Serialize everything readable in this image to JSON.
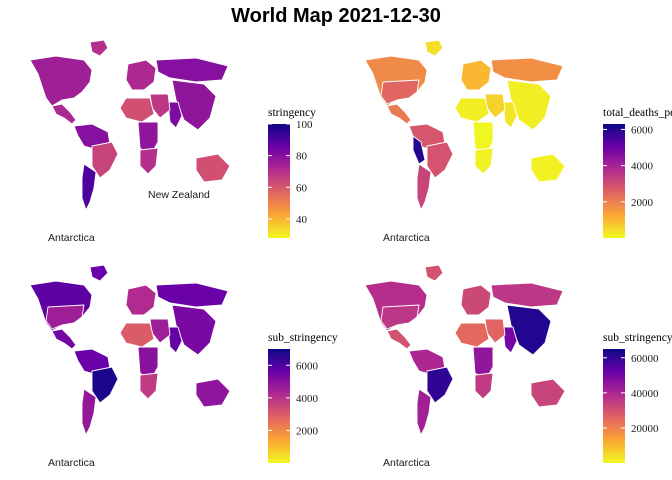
{
  "title": "World Map 2021-12-30",
  "panels": [
    {
      "id": "stringency",
      "legend": {
        "title": "stringency",
        "ticks": [
          100,
          80,
          60,
          40
        ],
        "range": [
          28,
          100
        ]
      },
      "annotations": [
        "New Zealand",
        "Antarctica"
      ],
      "values": {
        "north_america": 75,
        "greenland": 70,
        "central_america": 72,
        "south_america_north": 80,
        "brazil": 65,
        "south_america_south": 90,
        "europe": 72,
        "russia": 80,
        "asia_east": 78,
        "india": 82,
        "africa_north": 62,
        "africa_central": 78,
        "africa_south": 70,
        "middle_east": 68,
        "australia": 62
      }
    },
    {
      "id": "total_deaths_per_million",
      "legend": {
        "title": "total_deaths_per_million",
        "ticks": [
          6000,
          4000,
          2000
        ],
        "range": [
          0,
          6300
        ]
      },
      "annotations": [
        "Antarctica"
      ],
      "values": {
        "north_america": 1800,
        "usa": 2500,
        "greenland": 400,
        "central_america": 2100,
        "south_america_north": 2800,
        "brazil": 2900,
        "peru": 6000,
        "south_america_south": 3200,
        "europe": 1000,
        "russia": 1700,
        "asia_east": 150,
        "india": 300,
        "africa_north": 150,
        "africa_central": 40,
        "africa_south": 100,
        "middle_east": 600,
        "australia": 120
      }
    },
    {
      "id": "sub_stringency",
      "legend": {
        "title": "sub_stringency",
        "ticks": [
          6000,
          4000,
          2000
        ],
        "range": [
          0,
          7000
        ]
      },
      "annotations": [
        "Antarctica"
      ],
      "values": {
        "north_america": 5800,
        "usa": 4600,
        "greenland": 5600,
        "central_america": 5400,
        "south_america_north": 5600,
        "brazil": 6800,
        "south_america_south": 4800,
        "europe": 4200,
        "russia": 5600,
        "asia_east": 5300,
        "india": 5700,
        "africa_north": 3000,
        "africa_central": 5000,
        "africa_south": 3800,
        "middle_east": 4600,
        "australia": 4900
      }
    },
    {
      "id": "sub_stringency_cubed",
      "legend": {
        "title": "sub_stringency_cubed",
        "ticks": [
          60000,
          40000,
          20000
        ],
        "range": [
          0,
          65000
        ]
      },
      "annotations": [
        "Antarctica"
      ],
      "values": {
        "north_america": 38000,
        "usa": 36000,
        "greenland": 30000,
        "central_america": 30000,
        "south_america_north": 40000,
        "brazil": 60000,
        "south_america_south": 42000,
        "europe": 32000,
        "russia": 36000,
        "asia_east": 62000,
        "india": 50000,
        "africa_north": 25000,
        "africa_central": 45000,
        "africa_south": 35000,
        "middle_east": 26000,
        "australia": 33000
      }
    }
  ],
  "colors": {
    "palette": "plasma",
    "stops": [
      "#0d0887",
      "#6a00a8",
      "#b12a90",
      "#e16462",
      "#fca636",
      "#f0f921"
    ]
  }
}
